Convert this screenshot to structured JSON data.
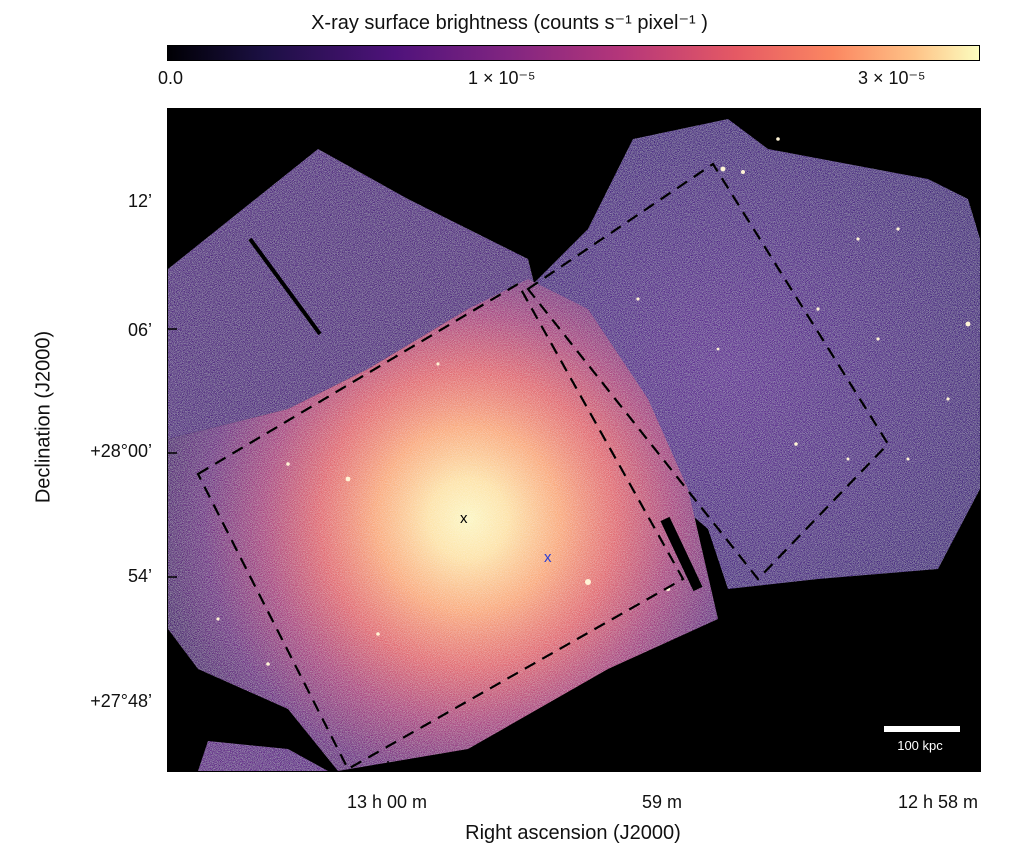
{
  "colorbar": {
    "title": "X-ray surface brightness (counts s⁻¹ pixel⁻¹ )",
    "ticks": [
      "0.0",
      "1 × 10⁻⁵",
      "3 × 10⁻⁵"
    ]
  },
  "axes": {
    "xlabel": "Right ascension (J2000)",
    "ylabel": "Declination (J2000)",
    "xticks": [
      "13 h 00 m",
      "59 m",
      "12 h 58 m"
    ],
    "yticks": [
      "12’",
      "06’",
      "+28°00’",
      "54’",
      "+27°48’"
    ]
  },
  "markers": [
    {
      "name": "cluster-center-marker",
      "symbol": "x",
      "color": "#000000"
    },
    {
      "name": "galaxy-marker",
      "symbol": "x",
      "color": "#2a3fd6"
    }
  ],
  "scalebar": {
    "label": "100 kpc"
  },
  "colors": {
    "colormap": "magma",
    "region_outline": "#000000"
  }
}
